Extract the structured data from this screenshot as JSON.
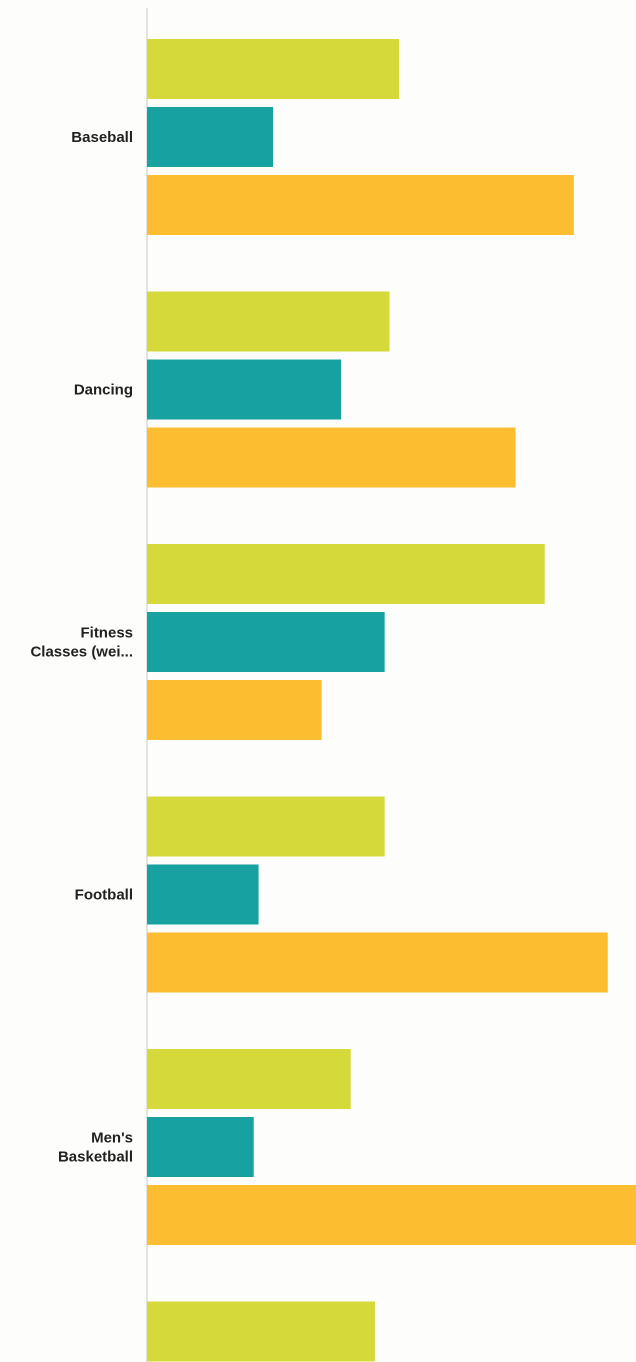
{
  "chart_data": {
    "type": "bar",
    "orientation": "horizontal",
    "title": "",
    "xlabel": "",
    "ylabel": "",
    "categories": [
      {
        "label": [
          "Baseball"
        ]
      },
      {
        "label": [
          "Dancing"
        ]
      },
      {
        "label": [
          "Fitness",
          "Classes (wei..."
        ]
      },
      {
        "label": [
          "Football"
        ]
      },
      {
        "label": [
          "Men's",
          "Basketball"
        ]
      },
      {
        "label": [
          ""
        ]
      }
    ],
    "series": [
      {
        "color": "#d5d93a",
        "values": [
          26.0,
          25.0,
          41.0,
          24.5,
          21.0,
          23.5
        ]
      },
      {
        "color": "#17a1a1",
        "values": [
          13.0,
          20.0,
          24.5,
          11.5,
          11.0,
          null
        ]
      },
      {
        "color": "#fdbd30",
        "values": [
          44.0,
          38.0,
          18.0,
          47.5,
          52.0,
          null
        ]
      }
    ],
    "xlim": [
      0,
      50
    ],
    "grid": false,
    "legend": "none"
  }
}
